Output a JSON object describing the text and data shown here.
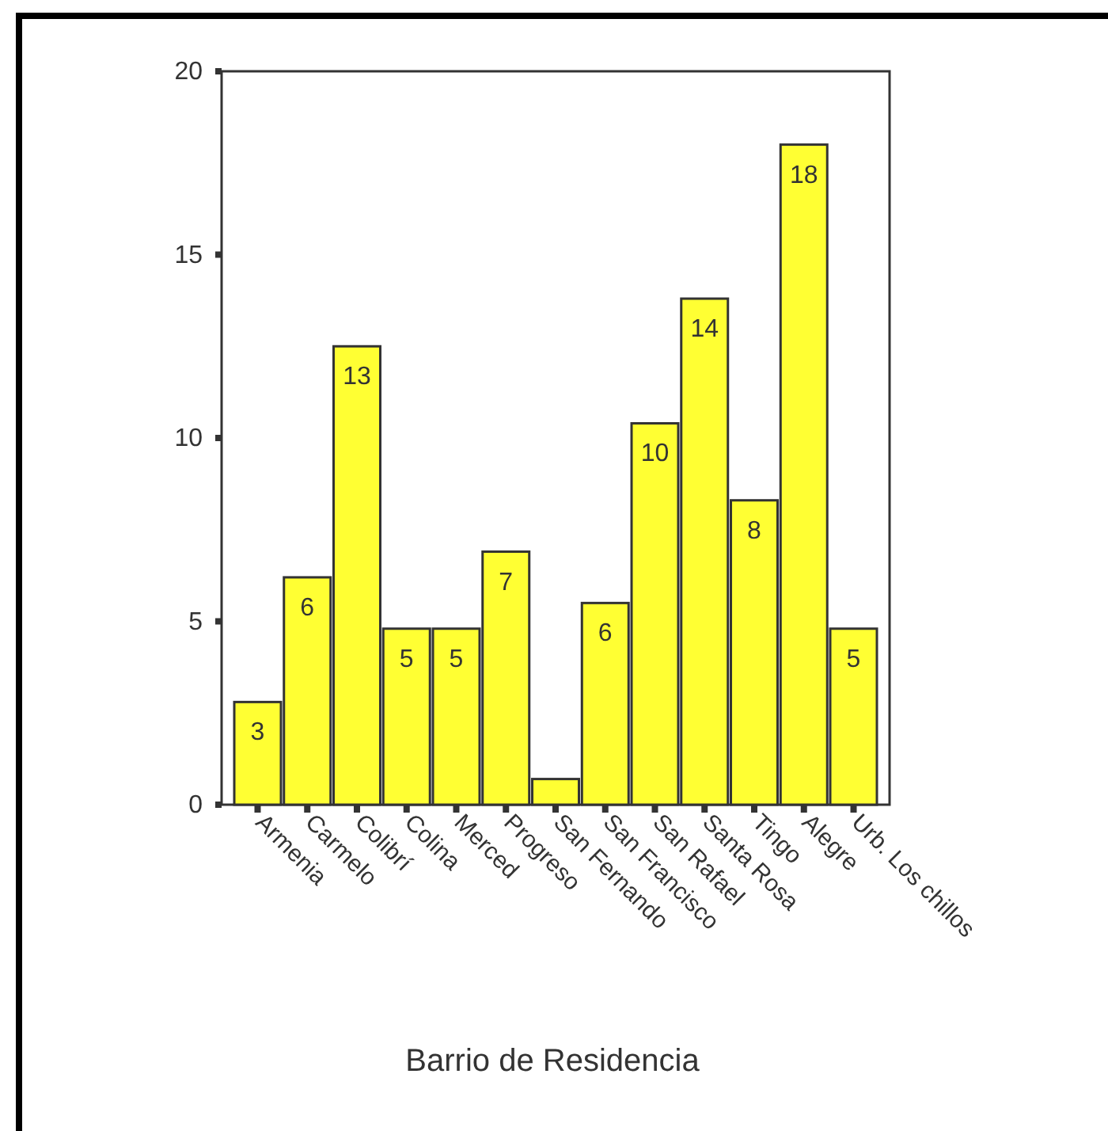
{
  "chart_data": {
    "type": "bar",
    "xlabel": "Barrio de Residencia",
    "categories": [
      "Armenia",
      "Carmelo",
      "Colibrí",
      "Colina",
      "Merced",
      "Progreso",
      "San Fernando",
      "San Francisco",
      "San Rafael",
      "Santa Rosa",
      "Tingo",
      "Alegre",
      "Urb. Los chillos"
    ],
    "values": [
      2.8,
      6.2,
      12.5,
      4.8,
      4.8,
      6.9,
      0.7,
      5.5,
      10.4,
      13.8,
      8.3,
      18.0,
      4.8
    ],
    "value_labels": [
      "3",
      "6",
      "13",
      "5",
      "5",
      "7",
      null,
      "6",
      "10",
      "14",
      "8",
      "18",
      "5"
    ],
    "color": "#ffff33",
    "ylim": [
      0,
      20
    ],
    "yticks": [
      0,
      5,
      10,
      15,
      20
    ],
    "grid": false
  }
}
